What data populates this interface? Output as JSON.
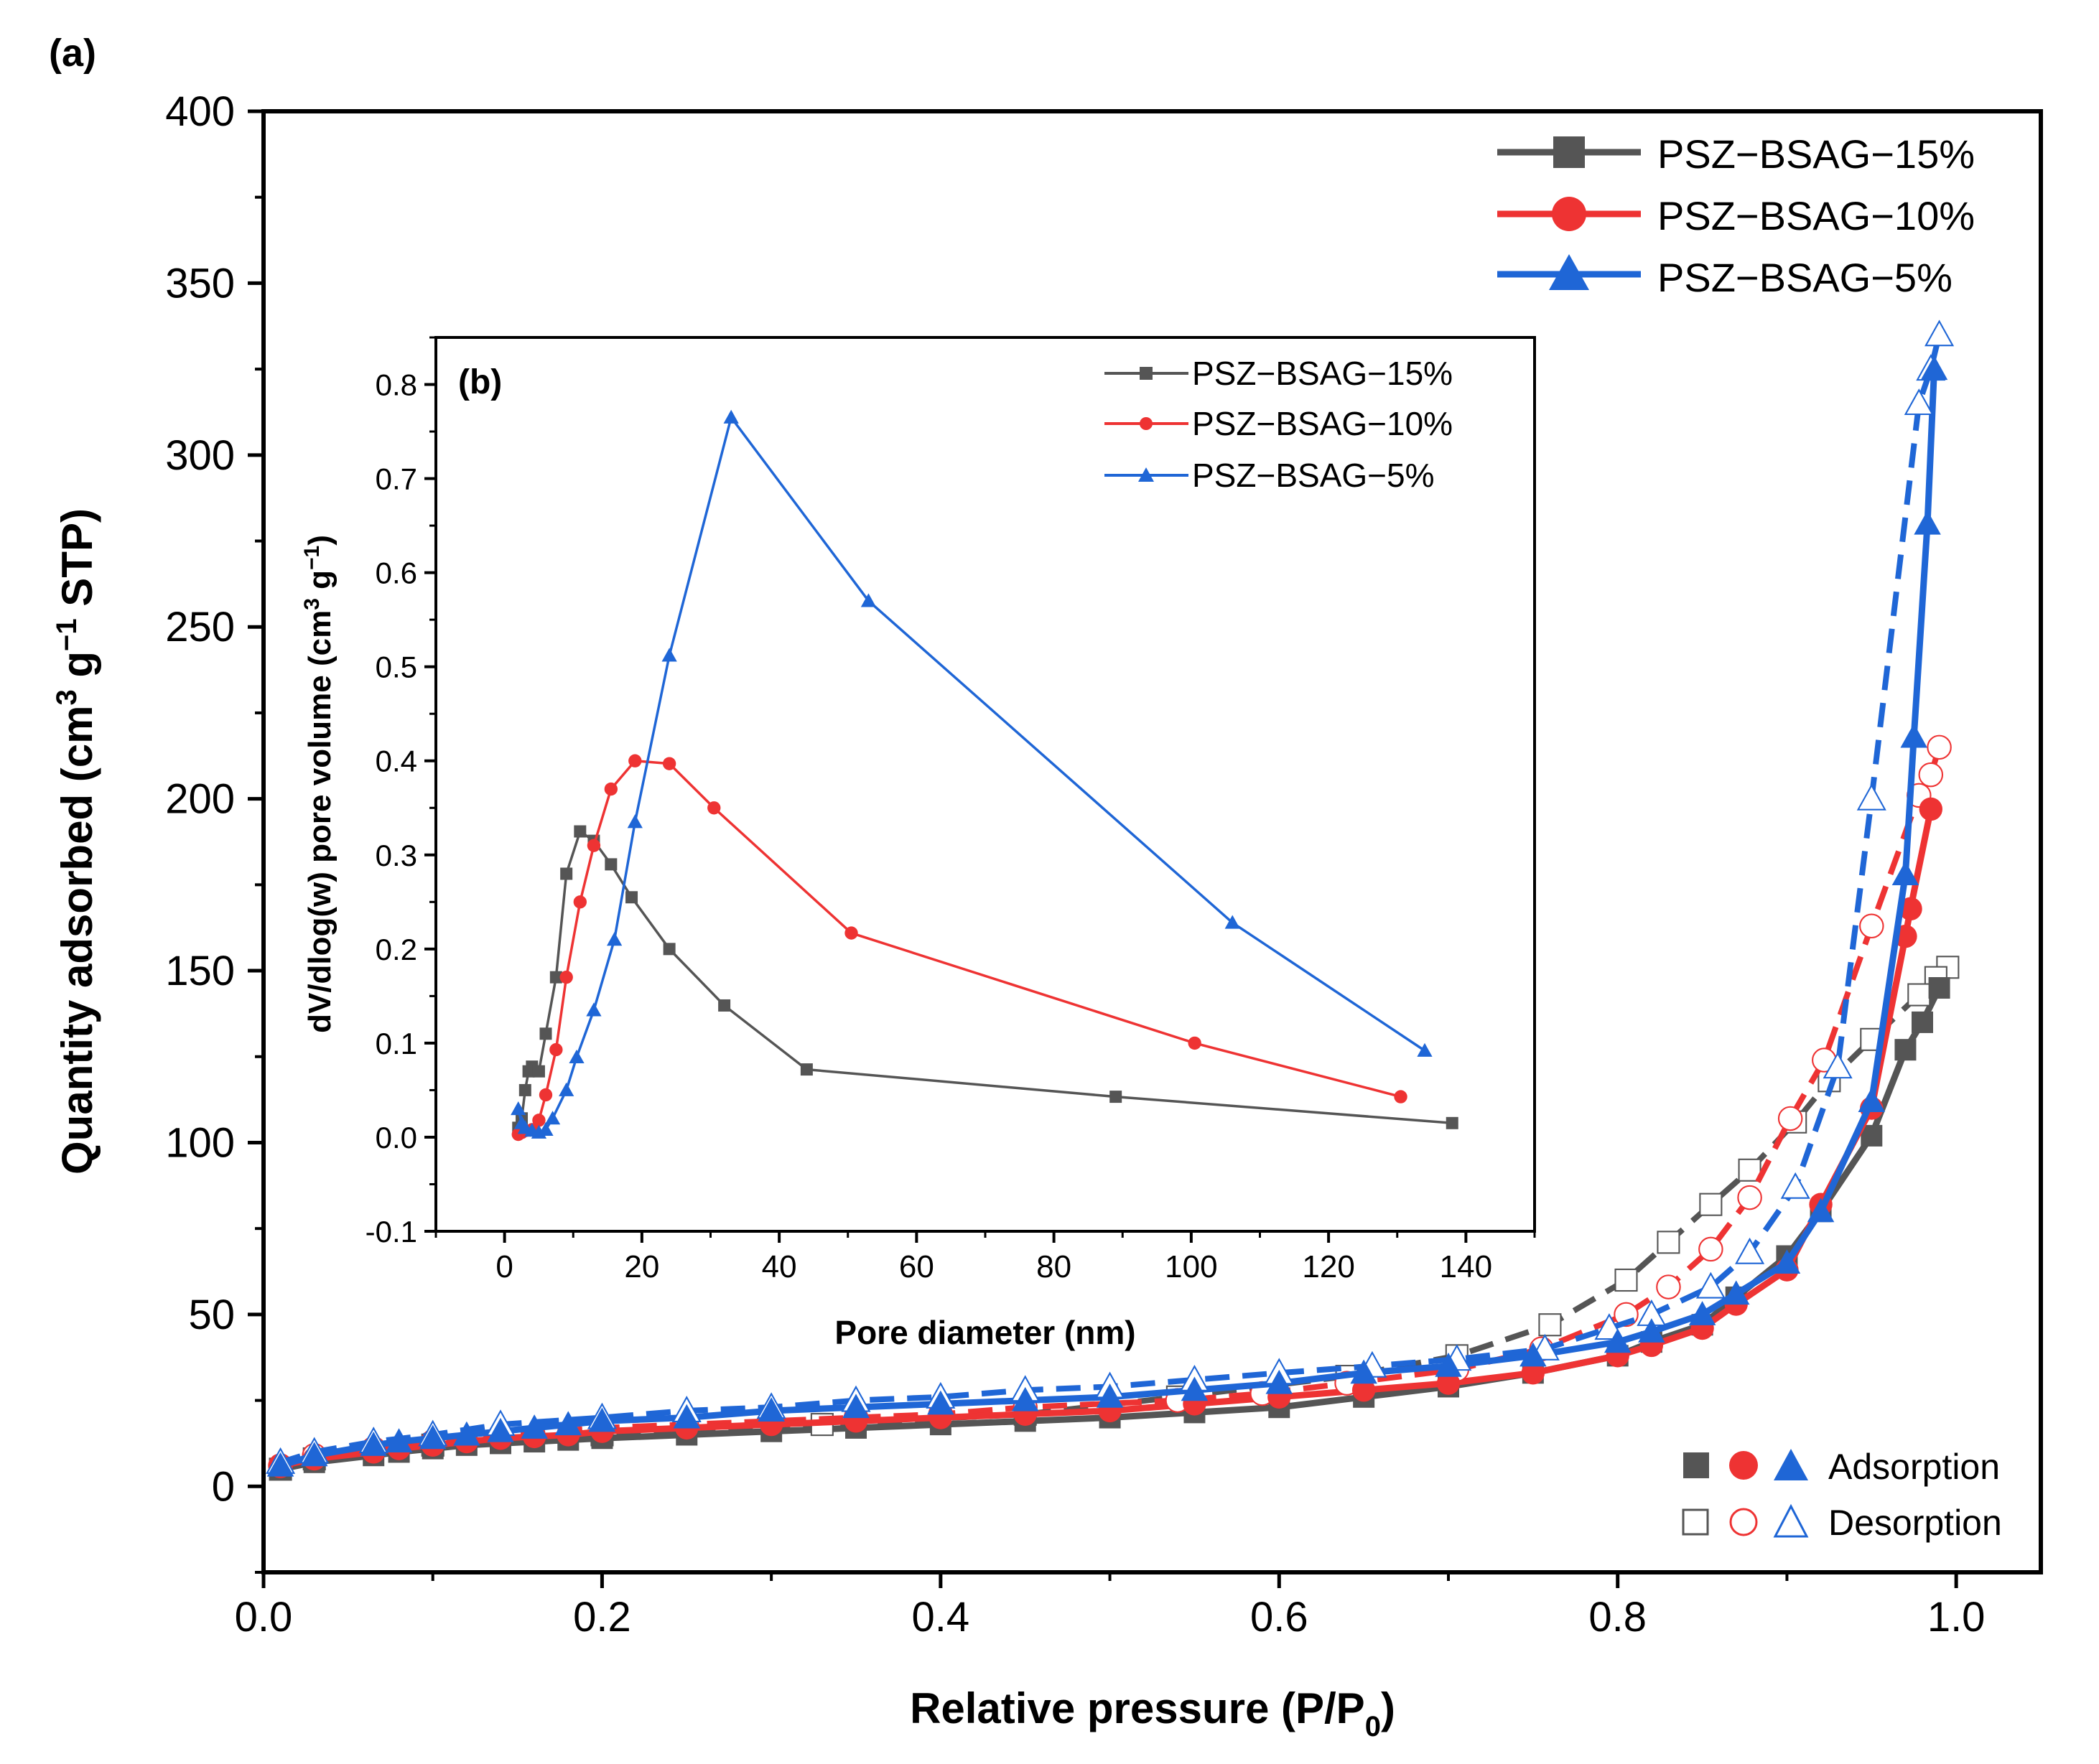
{
  "colors": {
    "s15": "#555555",
    "s10": "#ee3333",
    "s5": "#1f66d6"
  },
  "chart_data": [
    {
      "panel": "(a)",
      "type": "scatter",
      "xlabel": "Relative pressure (P/P",
      "xlabel_sub": "0",
      "xlabel_end": ")",
      "ylabel": "Quantity adsorbed (cm",
      "ylabel_sup1": "3",
      "ylabel_mid": " g",
      "ylabel_sup2": "−1",
      "ylabel_end": " STP)",
      "xlim": [
        0.0,
        1.05
      ],
      "ylim": [
        -25,
        400
      ],
      "xticks": [
        "0.0",
        "0.2",
        "0.4",
        "0.6",
        "0.8",
        "1.0"
      ],
      "xtick_values": [
        0.0,
        0.2,
        0.4,
        0.6,
        0.8,
        1.0
      ],
      "yticks": [
        "0",
        "50",
        "100",
        "150",
        "200",
        "250",
        "300",
        "350",
        "400"
      ],
      "ytick_values": [
        0,
        50,
        100,
        150,
        200,
        250,
        300,
        350,
        400
      ],
      "legend": [
        "PSZ−BSAG−15%",
        "PSZ−BSAG−10%",
        "PSZ−BSAG−5%"
      ],
      "marker_legend": {
        "adsorption": "Adsorption",
        "desorption": "Desorption"
      },
      "series": [
        {
          "name": "PSZ−BSAG−15%",
          "color_key": "s15",
          "marker": "square",
          "adsorption": [
            [
              0.01,
              5
            ],
            [
              0.03,
              7
            ],
            [
              0.065,
              9
            ],
            [
              0.08,
              10
            ],
            [
              0.1,
              11
            ],
            [
              0.12,
              12
            ],
            [
              0.14,
              12.5
            ],
            [
              0.16,
              13
            ],
            [
              0.18,
              13.5
            ],
            [
              0.2,
              14
            ],
            [
              0.25,
              15
            ],
            [
              0.3,
              16
            ],
            [
              0.35,
              17
            ],
            [
              0.4,
              18
            ],
            [
              0.45,
              19
            ],
            [
              0.5,
              20
            ],
            [
              0.55,
              21.5
            ],
            [
              0.6,
              23
            ],
            [
              0.65,
              26
            ],
            [
              0.7,
              29
            ],
            [
              0.75,
              33
            ],
            [
              0.8,
              38
            ],
            [
              0.82,
              42
            ],
            [
              0.85,
              47
            ],
            [
              0.87,
              55
            ],
            [
              0.9,
              67
            ],
            [
              0.92,
              80
            ],
            [
              0.95,
              102
            ],
            [
              0.97,
              127
            ],
            [
              0.98,
              135
            ],
            [
              0.99,
              145
            ]
          ],
          "desorption": [
            [
              0.995,
              151
            ],
            [
              0.988,
              148
            ],
            [
              0.978,
              143
            ],
            [
              0.95,
              130
            ],
            [
              0.925,
              118
            ],
            [
              0.905,
              106
            ],
            [
              0.878,
              92
            ],
            [
              0.855,
              82
            ],
            [
              0.83,
              71
            ],
            [
              0.805,
              60
            ],
            [
              0.76,
              47
            ],
            [
              0.705,
              38
            ],
            [
              0.64,
              32
            ],
            [
              0.54,
              26
            ],
            [
              0.45,
              21
            ],
            [
              0.33,
              18
            ],
            [
              0.2,
              15
            ],
            [
              0.1,
              12
            ],
            [
              0.03,
              8
            ],
            [
              0.01,
              5
            ]
          ]
        },
        {
          "name": "PSZ−BSAG−10%",
          "color_key": "s10",
          "marker": "circle",
          "adsorption": [
            [
              0.01,
              6
            ],
            [
              0.03,
              8
            ],
            [
              0.065,
              10
            ],
            [
              0.08,
              11
            ],
            [
              0.1,
              12
            ],
            [
              0.12,
              13
            ],
            [
              0.14,
              14
            ],
            [
              0.16,
              14.5
            ],
            [
              0.18,
              15
            ],
            [
              0.2,
              16
            ],
            [
              0.25,
              17
            ],
            [
              0.3,
              18
            ],
            [
              0.35,
              19
            ],
            [
              0.4,
              20
            ],
            [
              0.45,
              21
            ],
            [
              0.5,
              22
            ],
            [
              0.55,
              24
            ],
            [
              0.6,
              26
            ],
            [
              0.65,
              28
            ],
            [
              0.7,
              30
            ],
            [
              0.75,
              33
            ],
            [
              0.8,
              38
            ],
            [
              0.82,
              41
            ],
            [
              0.85,
              46
            ],
            [
              0.87,
              53
            ],
            [
              0.9,
              63
            ],
            [
              0.92,
              82
            ],
            [
              0.95,
              110
            ],
            [
              0.97,
              160
            ],
            [
              0.973,
              168
            ],
            [
              0.985,
              197
            ]
          ],
          "desorption": [
            [
              0.99,
              215
            ],
            [
              0.985,
              207
            ],
            [
              0.978,
              201
            ],
            [
              0.95,
              163
            ],
            [
              0.922,
              124
            ],
            [
              0.902,
              107
            ],
            [
              0.878,
              84
            ],
            [
              0.855,
              69
            ],
            [
              0.83,
              58
            ],
            [
              0.805,
              50
            ],
            [
              0.755,
              40
            ],
            [
              0.705,
              34
            ],
            [
              0.64,
              30
            ],
            [
              0.59,
              27
            ],
            [
              0.54,
              25
            ],
            [
              0.45,
              23
            ],
            [
              0.4,
              21
            ],
            [
              0.35,
              20
            ],
            [
              0.25,
              18
            ],
            [
              0.2,
              17
            ],
            [
              0.14,
              15
            ],
            [
              0.1,
              13
            ],
            [
              0.065,
              11
            ],
            [
              0.03,
              9
            ],
            [
              0.01,
              6
            ]
          ]
        },
        {
          "name": "PSZ−BSAG−5%",
          "color_key": "s5",
          "marker": "triangle",
          "adsorption": [
            [
              0.01,
              6
            ],
            [
              0.03,
              9
            ],
            [
              0.065,
              12
            ],
            [
              0.08,
              13
            ],
            [
              0.1,
              14
            ],
            [
              0.12,
              15
            ],
            [
              0.14,
              16
            ],
            [
              0.16,
              17
            ],
            [
              0.18,
              18
            ],
            [
              0.2,
              19
            ],
            [
              0.25,
              20
            ],
            [
              0.3,
              22
            ],
            [
              0.35,
              23
            ],
            [
              0.4,
              24
            ],
            [
              0.45,
              25
            ],
            [
              0.5,
              26
            ],
            [
              0.55,
              28
            ],
            [
              0.6,
              30
            ],
            [
              0.65,
              33
            ],
            [
              0.7,
              35
            ],
            [
              0.75,
              38
            ],
            [
              0.8,
              42
            ],
            [
              0.82,
              45
            ],
            [
              0.85,
              50
            ],
            [
              0.87,
              56
            ],
            [
              0.9,
              65
            ],
            [
              0.92,
              80
            ],
            [
              0.95,
              112
            ],
            [
              0.97,
              178
            ],
            [
              0.975,
              218
            ],
            [
              0.983,
              280
            ],
            [
              0.987,
              325
            ]
          ],
          "desorption": [
            [
              0.99,
              335
            ],
            [
              0.985,
              325
            ],
            [
              0.978,
              315
            ],
            [
              0.95,
              200
            ],
            [
              0.93,
              122
            ],
            [
              0.905,
              87
            ],
            [
              0.878,
              68
            ],
            [
              0.855,
              58
            ],
            [
              0.82,
              50
            ],
            [
              0.795,
              46
            ],
            [
              0.757,
              40
            ],
            [
              0.705,
              37
            ],
            [
              0.655,
              35
            ],
            [
              0.6,
              33
            ],
            [
              0.55,
              31
            ],
            [
              0.5,
              29
            ],
            [
              0.45,
              28
            ],
            [
              0.4,
              26
            ],
            [
              0.35,
              25
            ],
            [
              0.3,
              23
            ],
            [
              0.25,
              22
            ],
            [
              0.2,
              20
            ],
            [
              0.14,
              18
            ],
            [
              0.1,
              15
            ],
            [
              0.065,
              13
            ],
            [
              0.03,
              10
            ],
            [
              0.01,
              7
            ]
          ]
        }
      ]
    },
    {
      "panel": "(b)",
      "type": "line",
      "xlabel": "Pore diameter (nm)",
      "ylabel": "dV/dlog(w) pore volume (cm",
      "ylabel_sup1": "3",
      "ylabel_mid": " g",
      "ylabel_sup2": "−1",
      "ylabel_end": ")",
      "xlim": [
        -10,
        150
      ],
      "ylim": [
        -0.1,
        0.85
      ],
      "xticks": [
        "0",
        "20",
        "40",
        "60",
        "80",
        "100",
        "120",
        "140"
      ],
      "xtick_values": [
        0,
        20,
        40,
        60,
        80,
        100,
        120,
        140
      ],
      "yticks": [
        "-0.1",
        "0.0",
        "0.1",
        "0.2",
        "0.3",
        "0.4",
        "0.5",
        "0.6",
        "0.7",
        "0.8"
      ],
      "ytick_values": [
        -0.1,
        0.0,
        0.1,
        0.2,
        0.3,
        0.4,
        0.5,
        0.6,
        0.7,
        0.8
      ],
      "legend": [
        "PSZ−BSAG−15%",
        "PSZ−BSAG−10%",
        "PSZ−BSAG−5%"
      ],
      "series": [
        {
          "name": "PSZ−BSAG−15%",
          "color_key": "s15",
          "marker": "square",
          "points": [
            [
              2,
              0.01
            ],
            [
              2.5,
              0.02
            ],
            [
              3,
              0.05
            ],
            [
              3.5,
              0.07
            ],
            [
              4,
              0.075
            ],
            [
              5,
              0.07
            ],
            [
              6,
              0.11
            ],
            [
              7.5,
              0.17
            ],
            [
              9,
              0.28
            ],
            [
              11,
              0.325
            ],
            [
              13,
              0.315
            ],
            [
              15.5,
              0.29
            ],
            [
              18.5,
              0.255
            ],
            [
              24,
              0.2
            ],
            [
              32,
              0.14
            ],
            [
              44,
              0.072
            ],
            [
              89,
              0.043
            ],
            [
              138,
              0.015
            ]
          ]
        },
        {
          "name": "PSZ−BSAG−10%",
          "color_key": "s10",
          "marker": "circle",
          "points": [
            [
              2,
              0.003
            ],
            [
              2.5,
              0.005
            ],
            [
              3,
              0.007
            ],
            [
              4,
              0.008
            ],
            [
              5,
              0.018
            ],
            [
              6,
              0.045
            ],
            [
              7.5,
              0.093
            ],
            [
              9,
              0.17
            ],
            [
              11,
              0.25
            ],
            [
              13,
              0.31
            ],
            [
              15.5,
              0.37
            ],
            [
              19,
              0.4
            ],
            [
              24,
              0.397
            ],
            [
              30.5,
              0.35
            ],
            [
              50.5,
              0.217
            ],
            [
              100.5,
              0.1
            ],
            [
              130.5,
              0.043
            ]
          ]
        },
        {
          "name": "PSZ−BSAG−5%",
          "color_key": "s5",
          "marker": "triangle",
          "points": [
            [
              2,
              0.03
            ],
            [
              2.5,
              0.015
            ],
            [
              3,
              0.01
            ],
            [
              4,
              0.007
            ],
            [
              5,
              0.005
            ],
            [
              6,
              0.008
            ],
            [
              7,
              0.02
            ],
            [
              9,
              0.05
            ],
            [
              10.5,
              0.085
            ],
            [
              13,
              0.135
            ],
            [
              16,
              0.21
            ],
            [
              19,
              0.335
            ],
            [
              24,
              0.512
            ],
            [
              33,
              0.765
            ],
            [
              53,
              0.57
            ],
            [
              106,
              0.228
            ],
            [
              134,
              0.092
            ]
          ]
        }
      ]
    }
  ]
}
